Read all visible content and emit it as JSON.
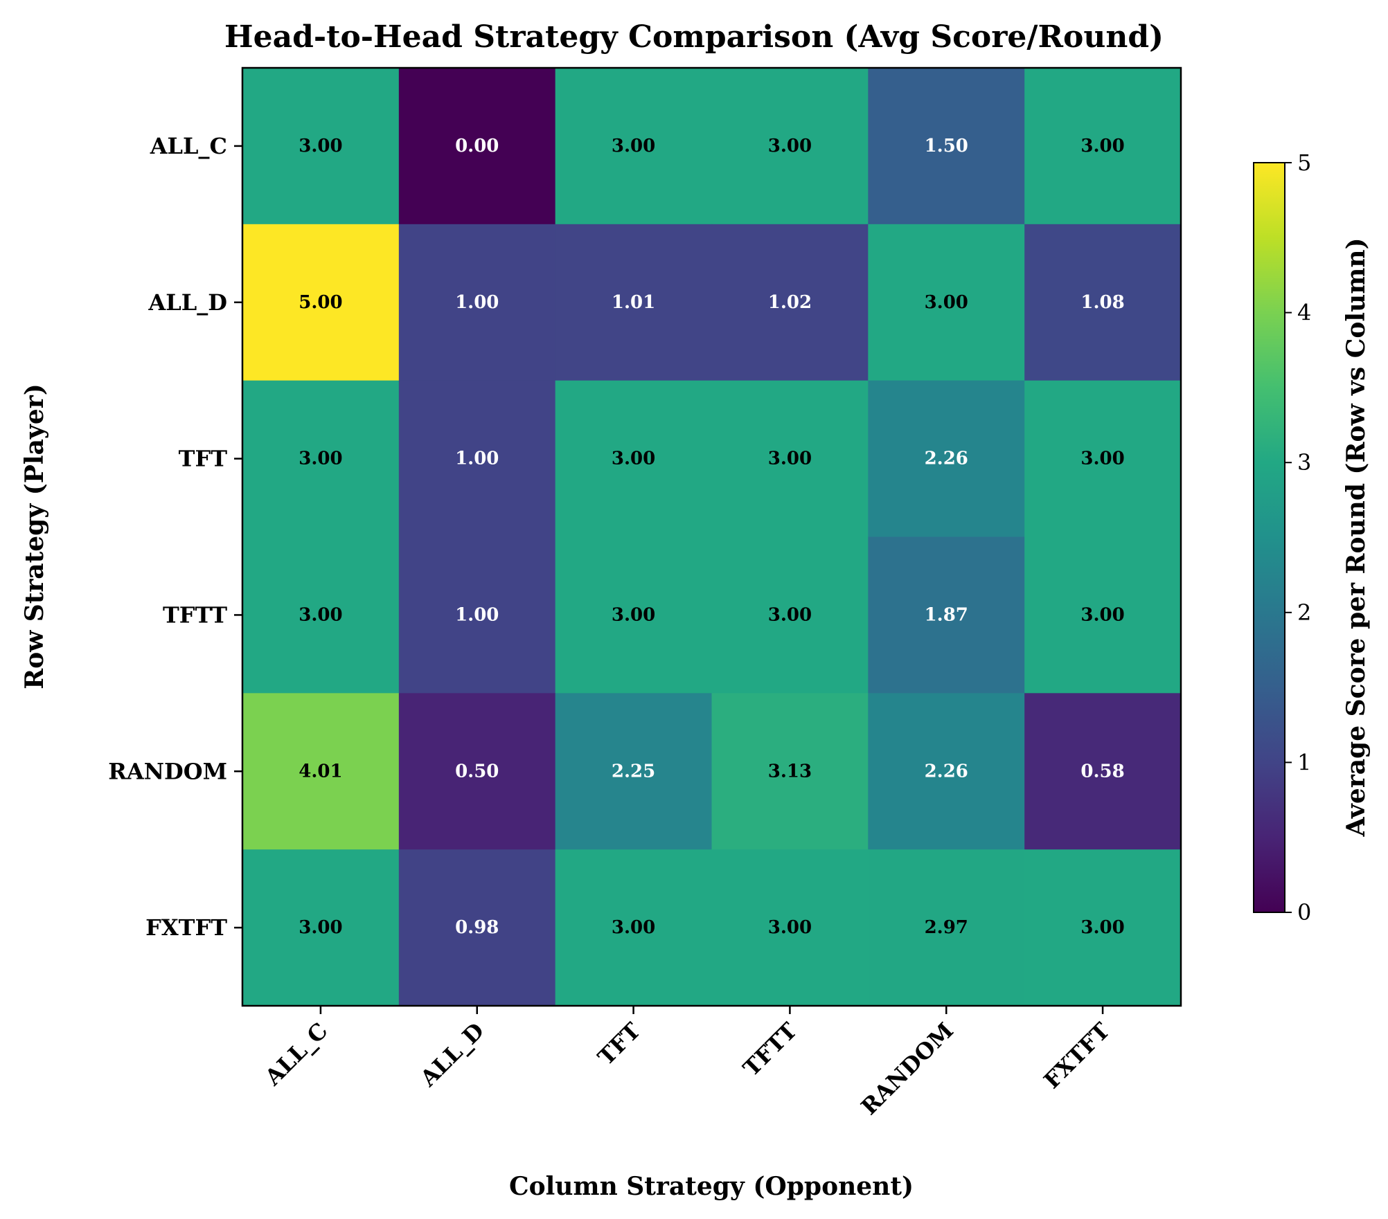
{
  "chart_data": {
    "type": "heatmap",
    "title": "Head-to-Head Strategy Comparison (Avg Score/Round)",
    "xlabel": "Column Strategy (Opponent)",
    "ylabel": "Row Strategy (Player)",
    "x_categories": [
      "ALL_C",
      "ALL_D",
      "TFT",
      "TFTT",
      "RANDOM",
      "FXTFT"
    ],
    "y_categories": [
      "ALL_C",
      "ALL_D",
      "TFT",
      "TFTT",
      "RANDOM",
      "FXTFT"
    ],
    "values": [
      [
        3.0,
        0.0,
        3.0,
        3.0,
        1.5,
        3.0
      ],
      [
        5.0,
        1.0,
        1.01,
        1.02,
        3.0,
        1.08
      ],
      [
        3.0,
        1.0,
        3.0,
        3.0,
        2.26,
        3.0
      ],
      [
        3.0,
        1.0,
        3.0,
        3.0,
        1.87,
        3.0
      ],
      [
        4.01,
        0.5,
        2.25,
        3.13,
        2.26,
        0.58
      ],
      [
        3.0,
        0.98,
        3.0,
        3.0,
        2.97,
        3.0
      ]
    ],
    "value_format": "0.00",
    "colormap": "viridis",
    "colorbar": {
      "label": "Average Score per Round (Row vs Column)",
      "range": [
        0,
        5
      ],
      "ticks": [
        "0",
        "1",
        "2",
        "3",
        "4",
        "5"
      ]
    }
  }
}
